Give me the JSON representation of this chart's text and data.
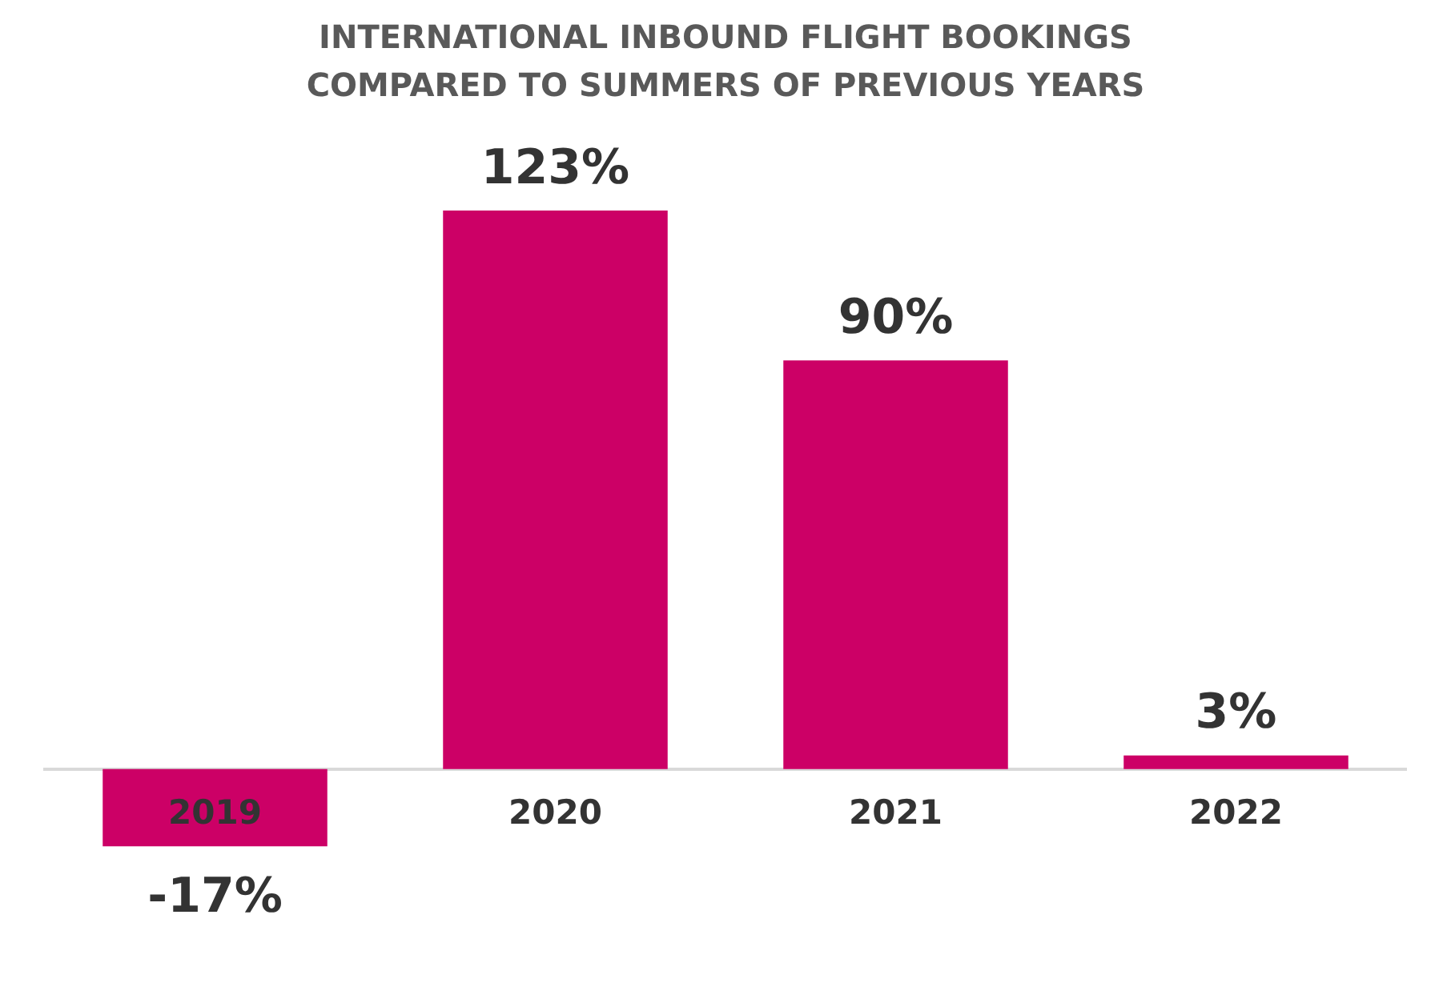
{
  "chart_data": {
    "type": "bar",
    "title": "INTERNATIONAL INBOUND FLIGHT BOOKINGS COMPARED TO SUMMERS OF PREVIOUS YEARS",
    "categories": [
      "2019",
      "2020",
      "2021",
      "2022"
    ],
    "values": [
      -17,
      123,
      90,
      3
    ],
    "value_labels": [
      "-17%",
      "123%",
      "90%",
      "3%"
    ],
    "color": "#cc0066",
    "grid": false,
    "legend": false
  }
}
